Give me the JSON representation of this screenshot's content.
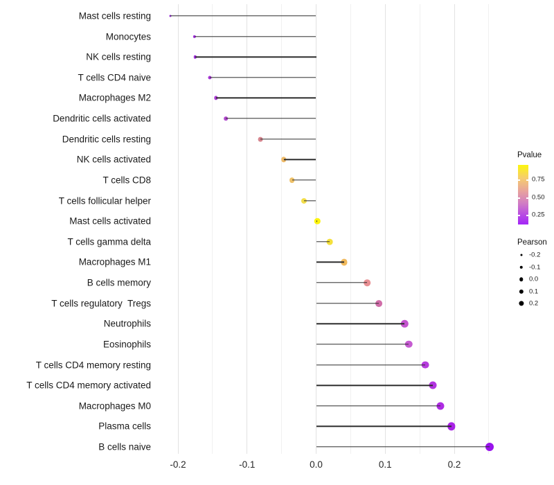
{
  "chart_data": {
    "type": "scatter",
    "subtype": "lollipop",
    "title": "",
    "xlabel": "",
    "ylabel": "",
    "grid": "vertical-only",
    "x_axis": {
      "major_ticks": [
        -0.2,
        -0.1,
        0.0,
        0.1,
        0.2
      ],
      "tick_labels": [
        "-0.2",
        "-0.1",
        "0.0",
        "0.1",
        "0.2"
      ],
      "minor_ticks": [
        -0.15,
        -0.05,
        0.05,
        0.15,
        0.25
      ],
      "range": [
        -0.235,
        0.275
      ]
    },
    "items": [
      {
        "label": "Mast cells resting",
        "pearson": -0.211,
        "color": "#9329d2"
      },
      {
        "label": "Monocytes",
        "pearson": -0.176,
        "color": "#a02ddb"
      },
      {
        "label": "NK cells resting",
        "pearson": -0.175,
        "color": "#a02ddb"
      },
      {
        "label": "T cells CD4 naive",
        "pearson": -0.154,
        "color": "#a836d6"
      },
      {
        "label": "Macrophages M2",
        "pearson": -0.145,
        "color": "#ab3bd3"
      },
      {
        "label": "Dendritic cells activated",
        "pearson": -0.131,
        "color": "#b148cd"
      },
      {
        "label": "Dendritic cells resting",
        "pearson": -0.081,
        "color": "#d6868f"
      },
      {
        "label": "NK cells activated",
        "pearson": -0.047,
        "color": "#eeba68"
      },
      {
        "label": "T cells CD8",
        "pearson": -0.035,
        "color": "#eec169"
      },
      {
        "label": "T cells follicular helper",
        "pearson": -0.018,
        "color": "#f2dd4a"
      },
      {
        "label": "Mast cells activated",
        "pearson": 0.002,
        "color": "#fcf30d"
      },
      {
        "label": "T cells gamma delta",
        "pearson": 0.02,
        "color": "#f4e03c"
      },
      {
        "label": "Macrophages M1",
        "pearson": 0.041,
        "color": "#f0b95c"
      },
      {
        "label": "B cells memory",
        "pearson": 0.074,
        "color": "#e88f93"
      },
      {
        "label": "T cells regulatory  Tregs",
        "pearson": 0.091,
        "color": "#d06da8"
      },
      {
        "label": "Neutrophils",
        "pearson": 0.128,
        "color": "#c453ce"
      },
      {
        "label": "Eosinophils",
        "pearson": 0.134,
        "color": "#c55bd1"
      },
      {
        "label": "T cells CD4 memory resting",
        "pearson": 0.158,
        "color": "#b63cdd"
      },
      {
        "label": "T cells CD4 memory activated",
        "pearson": 0.169,
        "color": "#b234e0"
      },
      {
        "label": "Macrophages M0",
        "pearson": 0.18,
        "color": "#ae2ce3"
      },
      {
        "label": "Plasma cells",
        "pearson": 0.196,
        "color": "#a922e7"
      },
      {
        "label": "B cells naive",
        "pearson": 0.251,
        "color": "#9913ec"
      }
    ],
    "legend_pvalue": {
      "title": "Pvalue",
      "tick_labels": [
        "0.75",
        "0.50",
        "0.25"
      ],
      "tick_offsets": [
        21,
        47,
        72
      ],
      "gradient_stops": [
        "#fcf60d 0%",
        "#f6cd6e 22%",
        "#e7a19f 45%",
        "#d07cc5 65%",
        "#b94ce2 83%",
        "#a326f7 100%"
      ]
    },
    "legend_pearson": {
      "title": "Pearson",
      "entries": [
        {
          "label": "-0.2",
          "size": 3.0
        },
        {
          "label": "-0.1",
          "size": 4.5
        },
        {
          "label": "0.0",
          "size": 5.5
        },
        {
          "label": "0.1",
          "size": 6.3
        },
        {
          "label": "0.2",
          "size": 7.2
        }
      ]
    }
  }
}
